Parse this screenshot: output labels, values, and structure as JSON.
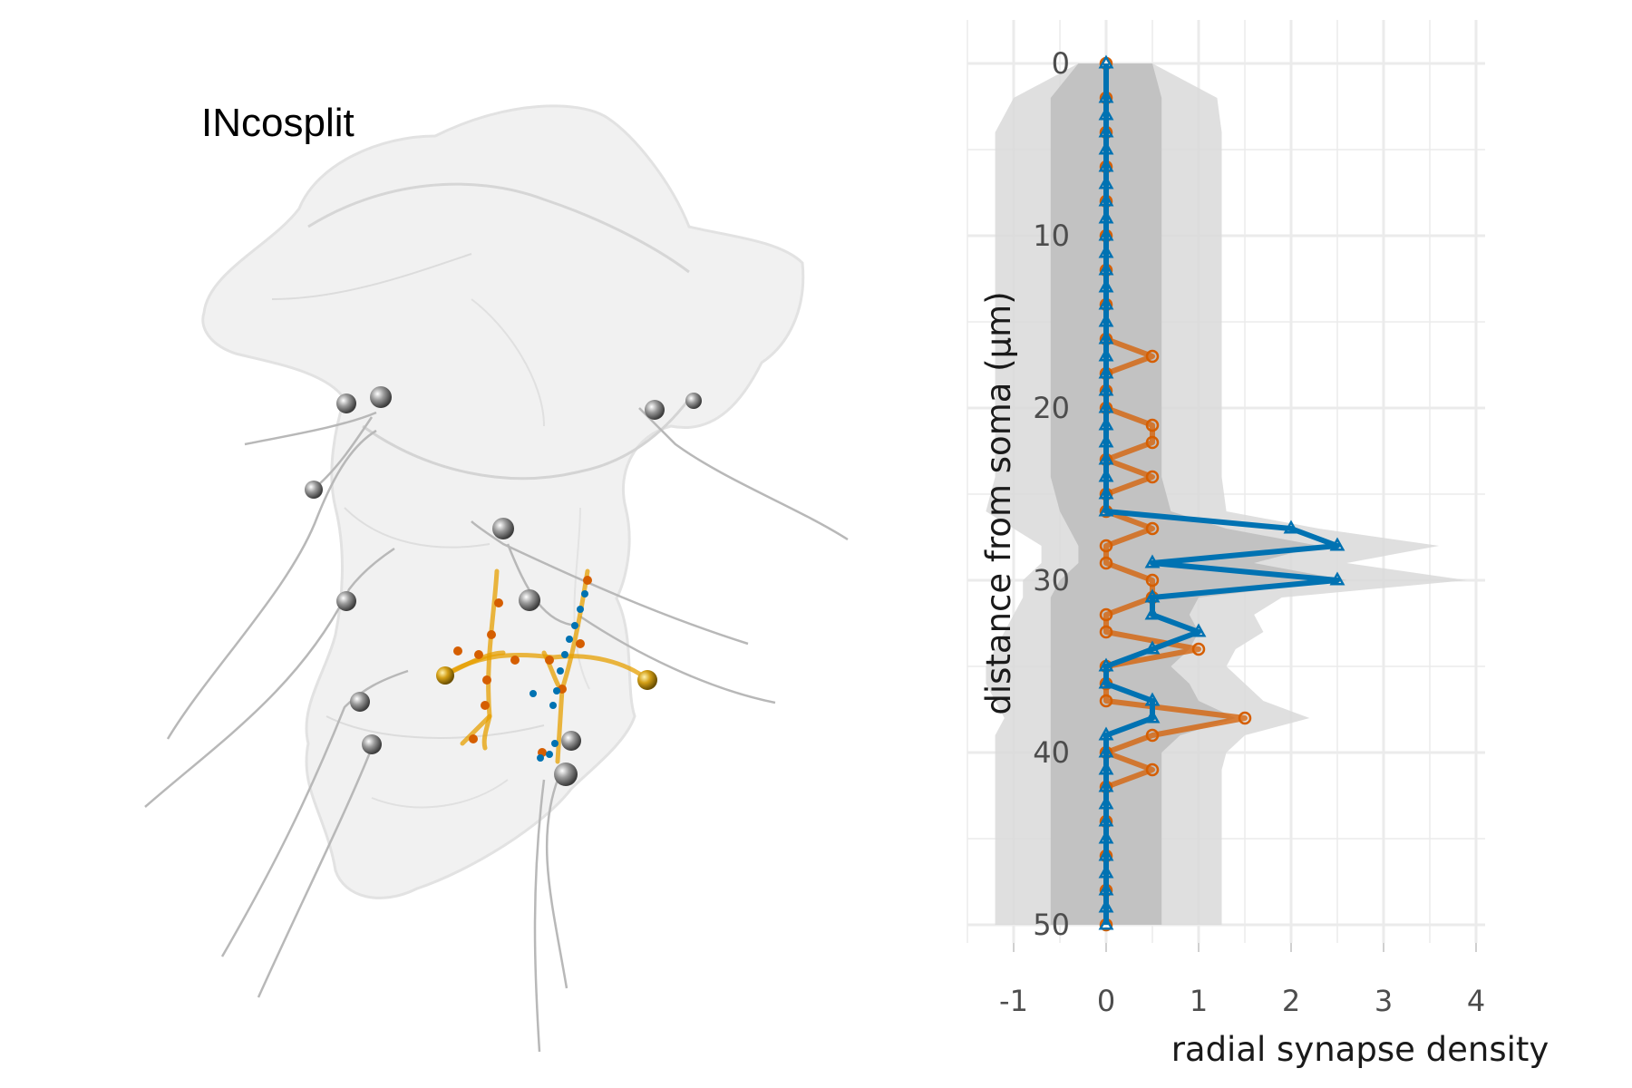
{
  "figure": {
    "panel_label": "INcosplit"
  },
  "colors": {
    "series_a": "#D55E00",
    "series_b": "#0072B2",
    "neuron": "#E69F00",
    "band_outer": "#d9d9d9",
    "band_inner": "#bdbdbd",
    "mesh": "#f1f1f1",
    "grid": "#ebebeb"
  },
  "chart_data": {
    "type": "line",
    "orientation": "vertical-profile",
    "xlabel": "radial synapse density",
    "ylabel": "distance from soma (µm)",
    "xlim": [
      -1.5,
      4
    ],
    "ylim": [
      0,
      51
    ],
    "y_reversed": true,
    "grid": true,
    "xticks": [
      -1,
      0,
      1,
      2,
      3,
      4
    ],
    "yticks": [
      0,
      10,
      20,
      30,
      40,
      50
    ],
    "bands": {
      "y": [
        0,
        2,
        4,
        6,
        8,
        10,
        12,
        14,
        16,
        18,
        20,
        22,
        24,
        26,
        27,
        28,
        29,
        30,
        31,
        32,
        33,
        34,
        35,
        36,
        37,
        38,
        39,
        40,
        41,
        42,
        44,
        46,
        48,
        50
      ],
      "outer_low": [
        -0.3,
        -1.0,
        -1.2,
        -1.2,
        -1.2,
        -1.2,
        -1.2,
        -1.2,
        -1.2,
        -1.2,
        -1.2,
        -1.2,
        -1.2,
        -1.3,
        -1.0,
        -0.7,
        -0.7,
        -0.9,
        -0.9,
        -1.0,
        -1.1,
        -1.2,
        -1.3,
        -1.3,
        -1.2,
        -1.1,
        -1.2,
        -1.2,
        -1.2,
        -1.2,
        -1.2,
        -1.2,
        -1.2,
        -1.2
      ],
      "outer_high": [
        0.5,
        1.2,
        1.25,
        1.25,
        1.25,
        1.25,
        1.25,
        1.25,
        1.25,
        1.25,
        1.25,
        1.25,
        1.25,
        1.3,
        2.3,
        3.6,
        2.6,
        3.9,
        1.9,
        1.6,
        1.7,
        1.4,
        1.3,
        1.5,
        1.7,
        2.2,
        1.5,
        1.3,
        1.25,
        1.25,
        1.25,
        1.25,
        1.25,
        1.25
      ],
      "inner_low": [
        -0.3,
        -0.6,
        -0.6,
        -0.6,
        -0.6,
        -0.6,
        -0.6,
        -0.6,
        -0.6,
        -0.6,
        -0.6,
        -0.6,
        -0.6,
        -0.5,
        -0.4,
        -0.3,
        -0.3,
        -0.5,
        -0.6,
        -0.6,
        -0.6,
        -0.6,
        -0.6,
        -0.6,
        -0.6,
        -0.6,
        -0.6,
        -0.6,
        -0.6,
        -0.6,
        -0.6,
        -0.6,
        -0.6,
        -0.6
      ],
      "inner_high": [
        0.5,
        0.6,
        0.6,
        0.6,
        0.6,
        0.6,
        0.6,
        0.6,
        0.6,
        0.6,
        0.6,
        0.6,
        0.6,
        0.7,
        1.3,
        2.3,
        1.6,
        2.6,
        1.0,
        0.9,
        1.0,
        0.9,
        0.7,
        0.9,
        1.0,
        1.4,
        0.8,
        0.6,
        0.6,
        0.6,
        0.6,
        0.6,
        0.6,
        0.6
      ]
    },
    "series": [
      {
        "marker": "circle",
        "y": [
          0,
          2,
          4,
          6,
          8,
          10,
          12,
          14,
          16,
          17,
          18,
          19,
          20,
          21,
          22,
          23,
          24,
          25,
          26,
          27,
          28,
          29,
          30,
          31,
          32,
          33,
          34,
          35,
          36,
          37,
          38,
          39,
          40,
          41,
          42,
          44,
          46,
          48,
          50
        ],
        "x": [
          0,
          0,
          0,
          0,
          0,
          0,
          0,
          0,
          0,
          0.5,
          0,
          0,
          0,
          0.5,
          0.5,
          0,
          0.5,
          0,
          0,
          0.5,
          0,
          0,
          0.5,
          0.5,
          0,
          0,
          1,
          0,
          0,
          0,
          1.5,
          0.5,
          0,
          0.5,
          0,
          0,
          0,
          0,
          0
        ]
      },
      {
        "marker": "triangle",
        "y": [
          0,
          2,
          3,
          4,
          5,
          6,
          7,
          8,
          9,
          10,
          11,
          12,
          13,
          14,
          15,
          16,
          17,
          18,
          19,
          20,
          21,
          22,
          23,
          24,
          25,
          26,
          27,
          28,
          29,
          30,
          31,
          32,
          33,
          34,
          35,
          36,
          37,
          38,
          39,
          40,
          41,
          42,
          43,
          44,
          45,
          46,
          47,
          48,
          49,
          50
        ],
        "x": [
          0,
          0,
          0,
          0,
          0,
          0,
          0,
          0,
          0,
          0,
          0,
          0,
          0,
          0,
          0,
          0,
          0,
          0,
          0,
          0,
          0,
          0,
          0,
          0,
          0,
          0,
          2,
          2.5,
          0.5,
          2.5,
          0.5,
          0.5,
          1,
          0.5,
          0,
          0,
          0.5,
          0.5,
          0,
          0,
          0,
          0,
          0,
          0,
          0,
          0,
          0,
          0,
          0,
          0
        ]
      }
    ]
  }
}
